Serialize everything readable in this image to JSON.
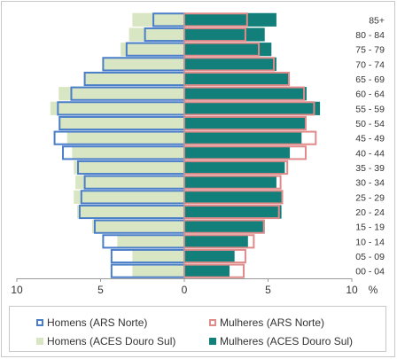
{
  "chart_data": {
    "type": "bar",
    "orientation": "horizontal-population-pyramid",
    "categories": [
      "00 - 04",
      "05 - 09",
      "10 - 14",
      "15 - 19",
      "20 - 24",
      "25 - 29",
      "30 - 34",
      "35 - 39",
      "40 - 44",
      "45 - 49",
      "50 - 54",
      "55 - 59",
      "60 - 64",
      "65 - 69",
      "70 - 74",
      "75 - 79",
      "80 - 84",
      "85+"
    ],
    "x_axis": {
      "ticks": [
        "10",
        "5",
        "0",
        "5",
        "10"
      ],
      "tick_values": [
        -10,
        -5,
        0,
        5,
        10
      ],
      "unit_label": "%",
      "xlim": [
        -10,
        10
      ]
    },
    "series": [
      {
        "name": "Homens (ARS Norte)",
        "side": "left",
        "style": "outline",
        "color": "#4a7ec8",
        "values": [
          4.4,
          4.4,
          4.9,
          5.4,
          6.3,
          6.2,
          6.0,
          6.4,
          7.3,
          7.8,
          7.5,
          7.6,
          6.8,
          6.0,
          4.9,
          3.5,
          2.4,
          1.9
        ]
      },
      {
        "name": "Mulheres (ARS Norte)",
        "side": "right",
        "style": "outline",
        "color": "#e08a8a",
        "values": [
          3.6,
          3.7,
          4.2,
          4.8,
          5.7,
          5.9,
          5.8,
          6.2,
          7.3,
          7.9,
          7.3,
          7.8,
          7.2,
          6.3,
          5.4,
          4.5,
          3.7,
          3.8
        ]
      },
      {
        "name": "Homens (ACES Douro Sul)",
        "side": "left",
        "style": "fill",
        "color": "#d9e6c3",
        "values": [
          3.1,
          3.1,
          4.0,
          5.5,
          6.4,
          6.6,
          6.5,
          6.6,
          6.7,
          7.0,
          7.5,
          8.0,
          7.5,
          6.0,
          4.8,
          3.8,
          3.3,
          3.1
        ]
      },
      {
        "name": "Mulheres (ACES Douro Sul)",
        "side": "right",
        "style": "fill",
        "color": "#127f7a",
        "values": [
          2.7,
          3.0,
          3.8,
          4.8,
          5.8,
          5.8,
          5.5,
          6.0,
          6.3,
          7.0,
          7.2,
          8.1,
          7.3,
          6.2,
          5.5,
          5.2,
          4.8,
          5.5
        ]
      }
    ],
    "legend_position": "bottom",
    "grid": false
  }
}
